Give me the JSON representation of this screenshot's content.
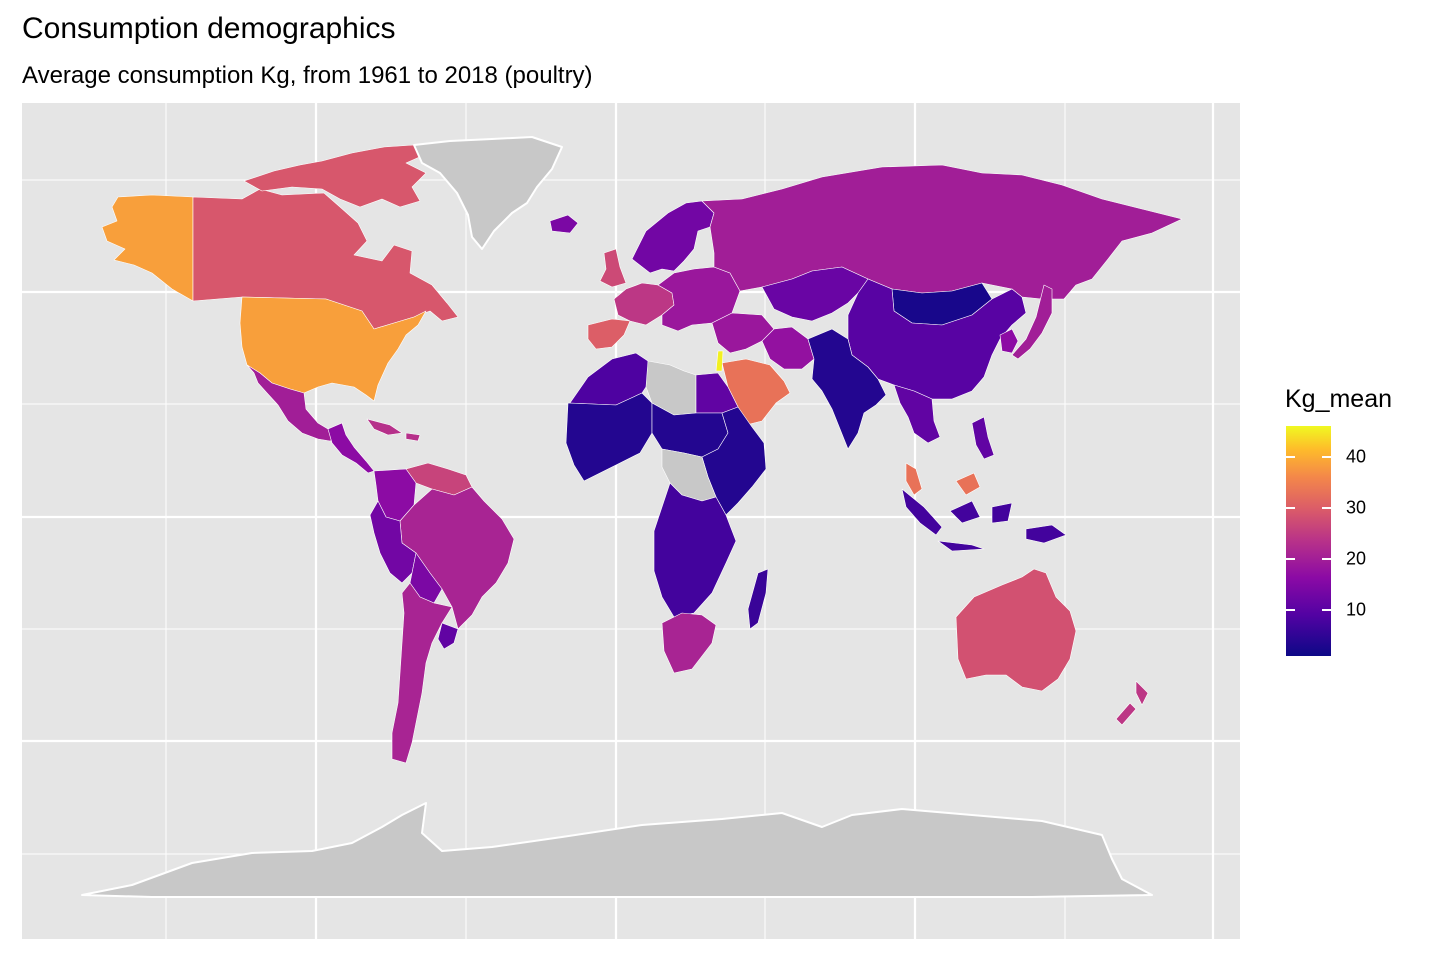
{
  "title": "Consumption demographics",
  "subtitle": "Average consumption Kg, from 1961 to 2018 (poultry)",
  "legend": {
    "title": "Kg_mean",
    "ticks": [
      "10",
      "20",
      "30",
      "40"
    ],
    "tick_values": [
      10,
      20,
      30,
      40
    ],
    "range": [
      1,
      46
    ],
    "scale": "plasma"
  },
  "colors": {
    "panel": "#e5e5e5",
    "grid": "#ffffff",
    "no_data": "#c8c8c8",
    "low": "#0d0887",
    "high": "#f0f921"
  },
  "regions": [
    {
      "id": "alaska",
      "value": 36
    },
    {
      "id": "canada",
      "value": 26
    },
    {
      "id": "arctic-islands",
      "value": 26
    },
    {
      "id": "usa",
      "value": 36
    },
    {
      "id": "mexico",
      "value": 17
    },
    {
      "id": "central-america",
      "value": 14
    },
    {
      "id": "caribbean",
      "value": 20
    },
    {
      "id": "venezuela",
      "value": 23
    },
    {
      "id": "colombia",
      "value": 14
    },
    {
      "id": "brazil",
      "value": 18
    },
    {
      "id": "peru",
      "value": 11
    },
    {
      "id": "bolivia",
      "value": 12
    },
    {
      "id": "argentina",
      "value": 18
    },
    {
      "id": "uruguay",
      "value": 9
    },
    {
      "id": "greenland",
      "value": null
    },
    {
      "id": "iceland",
      "value": 12
    },
    {
      "id": "scandinavia",
      "value": 11
    },
    {
      "id": "uk",
      "value": 24
    },
    {
      "id": "iberia",
      "value": 27
    },
    {
      "id": "western-europe",
      "value": 21
    },
    {
      "id": "eastern-europe",
      "value": 16
    },
    {
      "id": "russia",
      "value": 17
    },
    {
      "id": "kazakhstan",
      "value": 10
    },
    {
      "id": "mongolia",
      "value": 2
    },
    {
      "id": "china",
      "value": 8
    },
    {
      "id": "korea",
      "value": 14
    },
    {
      "id": "japan",
      "value": 17
    },
    {
      "id": "middle-east",
      "value": 16
    },
    {
      "id": "iran",
      "value": 15
    },
    {
      "id": "arabia",
      "value": 30
    },
    {
      "id": "israel",
      "value": 45
    },
    {
      "id": "south-asia",
      "value": 3
    },
    {
      "id": "southeast-asia",
      "value": 9
    },
    {
      "id": "malaysia",
      "value": 30
    },
    {
      "id": "indonesia",
      "value": 6
    },
    {
      "id": "philippines",
      "value": 9
    },
    {
      "id": "north-africa-west",
      "value": 7
    },
    {
      "id": "libya",
      "value": null
    },
    {
      "id": "egypt",
      "value": 9
    },
    {
      "id": "west-africa",
      "value": 3
    },
    {
      "id": "central-africa",
      "value": 3
    },
    {
      "id": "east-africa",
      "value": 3
    },
    {
      "id": "drc",
      "value": null
    },
    {
      "id": "southern-africa",
      "value": 6
    },
    {
      "id": "south-africa",
      "value": 18
    },
    {
      "id": "madagascar",
      "value": 5
    },
    {
      "id": "australia",
      "value": 25
    },
    {
      "id": "new-zealand",
      "value": 21
    },
    {
      "id": "antarctica",
      "value": null
    }
  ]
}
